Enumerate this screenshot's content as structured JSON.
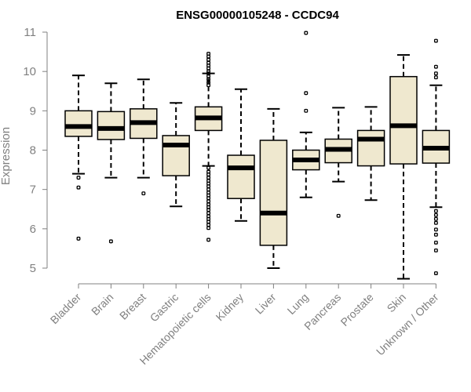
{
  "chart_data": {
    "type": "boxplot",
    "title": "ENSG00000105248 - CCDC94",
    "xlabel": "",
    "ylabel": "Expression",
    "ylim": [
      4.7,
      11.1
    ],
    "yticks": [
      5,
      6,
      7,
      8,
      9,
      10,
      11
    ],
    "colors": {
      "box_fill": "#EFE8CF",
      "stroke": "#000000",
      "axis": "#808080"
    },
    "categories": [
      "Bladder",
      "Brain",
      "Breast",
      "Gastric",
      "Hematopoietic cells",
      "Kidney",
      "Liver",
      "Lung",
      "Pancreas",
      "Prostate",
      "Skin",
      "Unknown / Other"
    ],
    "boxes": [
      {
        "name": "Bladder",
        "whisker_low": 7.4,
        "q1": 8.35,
        "median": 8.6,
        "q3": 9.0,
        "whisker_high": 9.9,
        "outliers": [
          7.3,
          7.05,
          5.75
        ]
      },
      {
        "name": "Brain",
        "whisker_low": 7.3,
        "q1": 8.27,
        "median": 8.55,
        "q3": 8.98,
        "whisker_high": 9.7,
        "outliers": [
          5.68
        ]
      },
      {
        "name": "Breast",
        "whisker_low": 7.3,
        "q1": 8.3,
        "median": 8.7,
        "q3": 9.05,
        "whisker_high": 9.8,
        "outliers": [
          6.9
        ]
      },
      {
        "name": "Gastric",
        "whisker_low": 6.57,
        "q1": 7.35,
        "median": 8.13,
        "q3": 8.37,
        "whisker_high": 9.2,
        "outliers": []
      },
      {
        "name": "Hematopoietic cells",
        "whisker_low": 7.6,
        "q1": 8.5,
        "median": 8.82,
        "q3": 9.1,
        "whisker_high": 9.95,
        "outliers": [
          10.45,
          10.38,
          10.3,
          10.22,
          10.15,
          10.08,
          10.0,
          9.95,
          9.88,
          9.8,
          9.72,
          9.65,
          7.55,
          7.45,
          7.38,
          7.3,
          7.22,
          7.15,
          7.08,
          7.0,
          6.92,
          6.85,
          6.78,
          6.7,
          6.62,
          6.55,
          6.48,
          6.4,
          6.32,
          6.25,
          6.18,
          6.1,
          6.02,
          5.72
        ]
      },
      {
        "name": "Kidney",
        "whisker_low": 6.2,
        "q1": 6.77,
        "median": 7.55,
        "q3": 7.87,
        "whisker_high": 9.55,
        "outliers": []
      },
      {
        "name": "Liver",
        "whisker_low": 5.0,
        "q1": 5.58,
        "median": 6.4,
        "q3": 8.25,
        "whisker_high": 9.05,
        "outliers": []
      },
      {
        "name": "Lung",
        "whisker_low": 6.8,
        "q1": 7.5,
        "median": 7.75,
        "q3": 8.0,
        "whisker_high": 8.45,
        "outliers": [
          10.98,
          9.45,
          9.0
        ]
      },
      {
        "name": "Pancreas",
        "whisker_low": 7.2,
        "q1": 7.68,
        "median": 8.02,
        "q3": 8.28,
        "whisker_high": 9.08,
        "outliers": [
          6.33
        ]
      },
      {
        "name": "Prostate",
        "whisker_low": 6.73,
        "q1": 7.6,
        "median": 8.28,
        "q3": 8.5,
        "whisker_high": 9.1,
        "outliers": []
      },
      {
        "name": "Skin",
        "whisker_low": 4.73,
        "q1": 7.65,
        "median": 8.62,
        "q3": 9.87,
        "whisker_high": 10.42,
        "outliers": []
      },
      {
        "name": "Unknown / Other",
        "whisker_low": 6.55,
        "q1": 7.67,
        "median": 8.05,
        "q3": 8.5,
        "whisker_high": 9.65,
        "outliers": [
          10.78,
          10.12,
          9.95,
          9.85,
          6.45,
          6.35,
          6.25,
          6.15,
          5.98,
          5.85,
          5.65,
          5.45,
          4.87
        ]
      }
    ]
  }
}
